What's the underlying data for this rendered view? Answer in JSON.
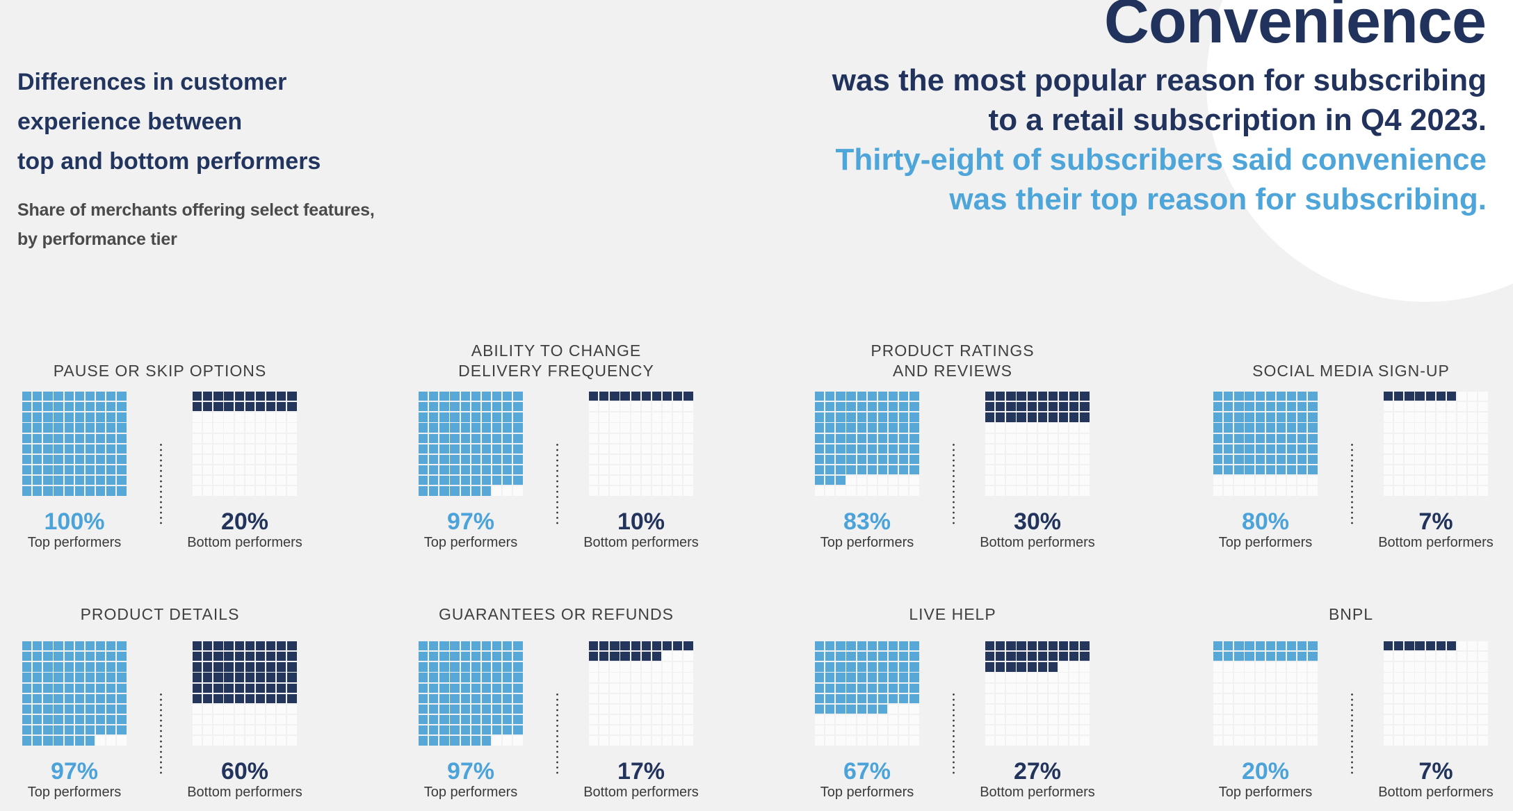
{
  "header": {
    "title_lines": [
      "Differences in customer",
      "experience between",
      "top and bottom performers"
    ],
    "subtitle_lines": [
      "Share of merchants offering select features,",
      "by performance tier"
    ]
  },
  "headline": {
    "word": "Convenience",
    "navy_line1": "was the most popular reason for subscribing",
    "navy_line2": "to a retail subscription in Q4 2023.",
    "blue_line1": "Thirty-eight of subscribers said convenience",
    "blue_line2": "was their top reason for subscribing."
  },
  "colors": {
    "background": "#f1f1f2",
    "circle": "#ffffff",
    "navy_text": "#21335c",
    "blue_text": "#4da5d9",
    "cell_blue": "#57a8d6",
    "cell_navy": "#24365c",
    "cell_empty": "#fbfbfb",
    "chart_title_gray": "#3f3f3f",
    "label_gray": "#3a3a3a",
    "subtitle_gray": "#4a4a4a"
  },
  "chart_data": {
    "type": "waffle",
    "title": "Differences in customer experience between top and bottom performers",
    "subtitle": "Share of merchants offering select features, by performance tier",
    "grid": {
      "rows": 10,
      "cols": 10,
      "cell_unit_percent": 1,
      "fill_order": "top-left, row by row"
    },
    "unit_labels": {
      "top": "Top performers",
      "bottom": "Bottom performers"
    },
    "charts": [
      {
        "title_lines": [
          "PAUSE OR SKIP OPTIONS"
        ],
        "top_percent": 100,
        "bottom_percent": 20
      },
      {
        "title_lines": [
          "ABILITY TO CHANGE",
          "DELIVERY FREQUENCY"
        ],
        "top_percent": 97,
        "bottom_percent": 10
      },
      {
        "title_lines": [
          "PRODUCT RATINGS",
          "AND REVIEWS"
        ],
        "top_percent": 83,
        "bottom_percent": 30
      },
      {
        "title_lines": [
          "SOCIAL MEDIA SIGN-UP"
        ],
        "top_percent": 80,
        "bottom_percent": 7
      },
      {
        "title_lines": [
          "PRODUCT DETAILS"
        ],
        "top_percent": 97,
        "bottom_percent": 60
      },
      {
        "title_lines": [
          "GUARANTEES OR REFUNDS"
        ],
        "top_percent": 97,
        "bottom_percent": 17
      },
      {
        "title_lines": [
          "LIVE HELP"
        ],
        "top_percent": 67,
        "bottom_percent": 27
      },
      {
        "title_lines": [
          "BNPL"
        ],
        "top_percent": 20,
        "bottom_percent": 7
      }
    ]
  }
}
